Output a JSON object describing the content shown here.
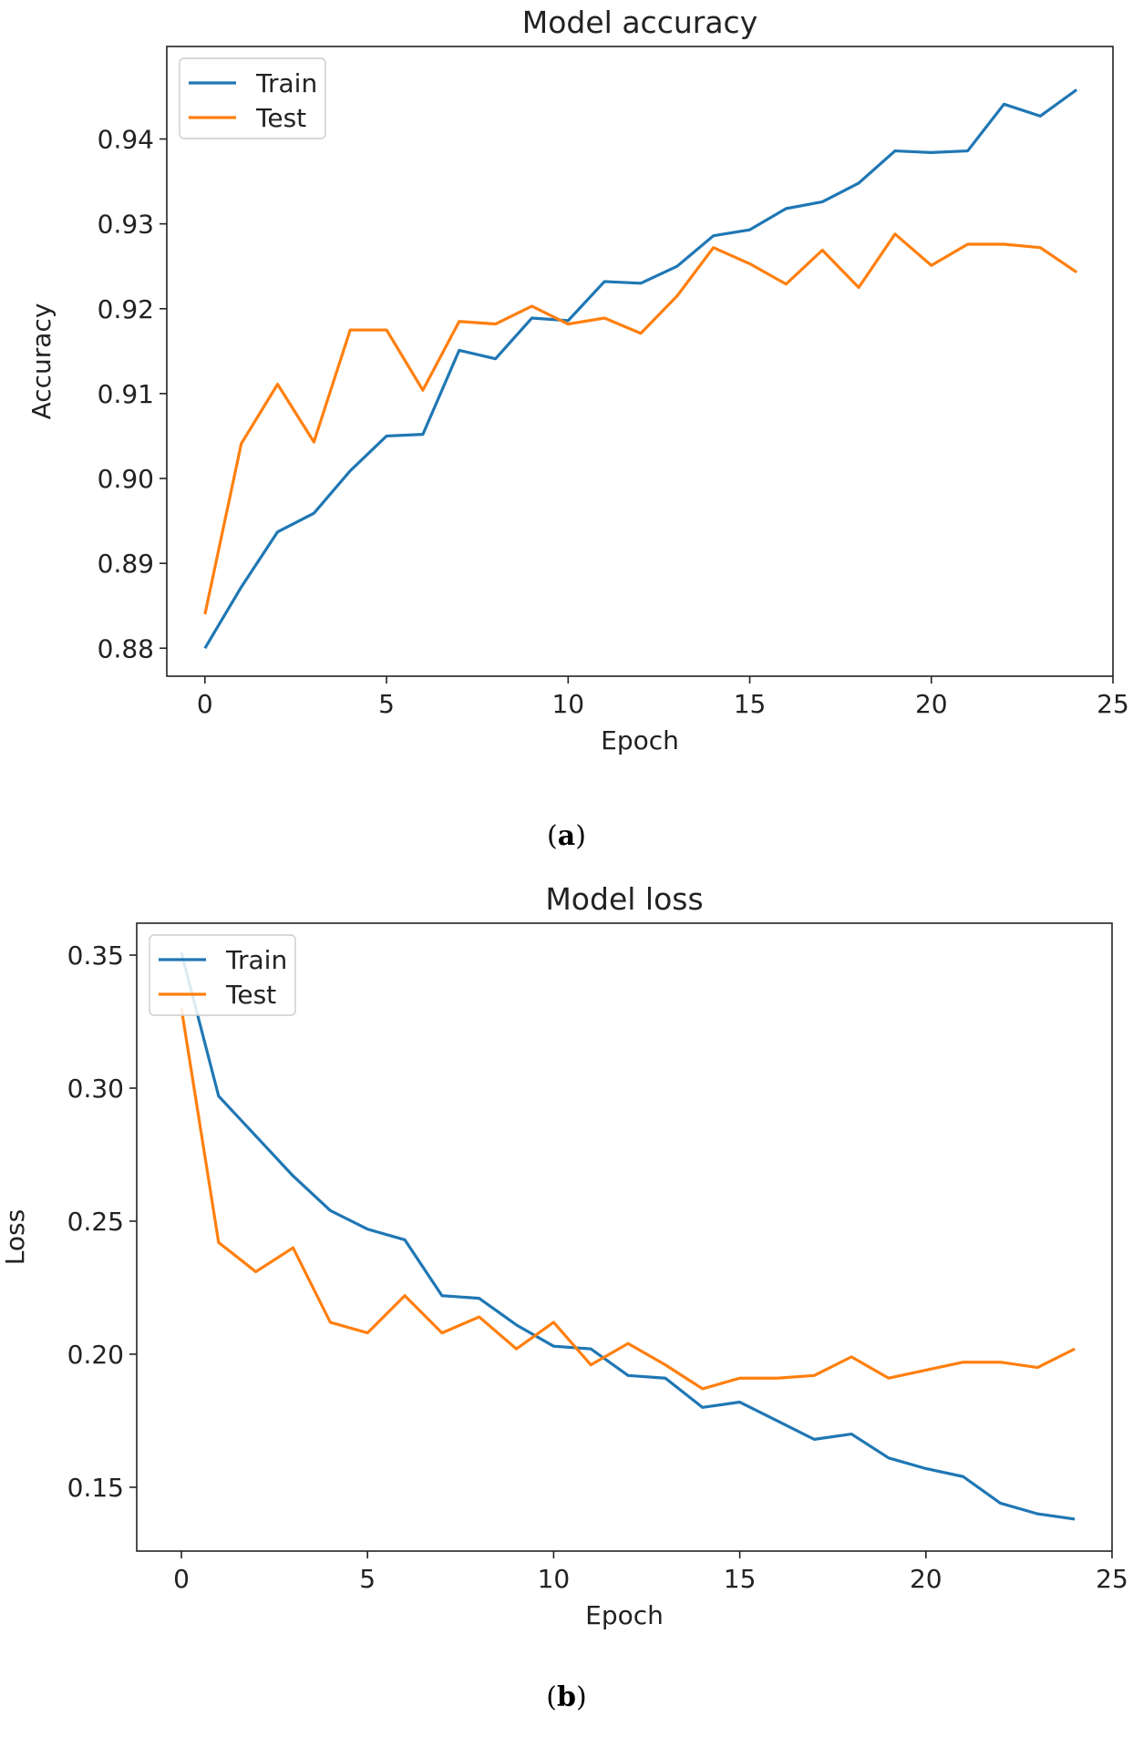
{
  "chart_data": [
    {
      "type": "line",
      "title": "Model accuracy",
      "xlabel": "Epoch",
      "ylabel": "Accuracy",
      "xlim": [
        -1.05,
        25.0
      ],
      "ylim": [
        0.8767,
        0.9509
      ],
      "x": [
        0,
        1,
        2,
        3,
        4,
        5,
        6,
        7,
        8,
        9,
        10,
        11,
        12,
        13,
        14,
        15,
        16,
        17,
        18,
        19,
        20,
        21,
        22,
        23,
        24
      ],
      "xticks": [
        0,
        5,
        10,
        15,
        20,
        25
      ],
      "xtick_labels": [
        "0",
        "5",
        "10",
        "15",
        "20",
        "25"
      ],
      "yticks": [
        0.88,
        0.89,
        0.9,
        0.91,
        0.92,
        0.93,
        0.94
      ],
      "ytick_labels": [
        "0.88",
        "0.89",
        "0.90",
        "0.91",
        "0.92",
        "0.93",
        "0.94"
      ],
      "legend_position": "top-left",
      "series": [
        {
          "name": "Train",
          "color": "#1f77b4",
          "values": [
            0.88,
            0.8872,
            0.8937,
            0.8959,
            0.9009,
            0.905,
            0.9052,
            0.9151,
            0.9141,
            0.9189,
            0.9186,
            0.9232,
            0.923,
            0.925,
            0.9286,
            0.9293,
            0.9318,
            0.9326,
            0.9348,
            0.9386,
            0.9384,
            0.9386,
            0.9441,
            0.9427,
            0.9458
          ]
        },
        {
          "name": "Test",
          "color": "#ff7f0e",
          "values": [
            0.884,
            0.9041,
            0.9111,
            0.9043,
            0.9175,
            0.9175,
            0.9104,
            0.9185,
            0.9182,
            0.9203,
            0.9182,
            0.9189,
            0.9171,
            0.9215,
            0.9272,
            0.9253,
            0.9229,
            0.9269,
            0.9225,
            0.9288,
            0.9251,
            0.9276,
            0.9276,
            0.9272,
            0.9243
          ]
        }
      ]
    },
    {
      "type": "line",
      "title": "Model loss",
      "xlabel": "Epoch",
      "ylabel": "Loss",
      "xlim": [
        -1.2,
        25.0
      ],
      "ylim": [
        0.126,
        0.362
      ],
      "x": [
        0,
        1,
        2,
        3,
        4,
        5,
        6,
        7,
        8,
        9,
        10,
        11,
        12,
        13,
        14,
        15,
        16,
        17,
        18,
        19,
        20,
        21,
        22,
        23,
        24
      ],
      "xticks": [
        0,
        5,
        10,
        15,
        20,
        25
      ],
      "xtick_labels": [
        "0",
        "5",
        "10",
        "15",
        "20",
        "25"
      ],
      "yticks": [
        0.15,
        0.2,
        0.25,
        0.3,
        0.35
      ],
      "ytick_labels": [
        "0.15",
        "0.20",
        "0.25",
        "0.30",
        "0.35"
      ],
      "legend_position": "top-left",
      "series": [
        {
          "name": "Train",
          "color": "#1f77b4",
          "values": [
            0.351,
            0.297,
            0.282,
            0.267,
            0.254,
            0.247,
            0.243,
            0.222,
            0.221,
            0.211,
            0.203,
            0.202,
            0.192,
            0.191,
            0.18,
            0.182,
            0.175,
            0.168,
            0.17,
            0.161,
            0.157,
            0.154,
            0.144,
            0.14,
            0.138
          ]
        },
        {
          "name": "Test",
          "color": "#ff7f0e",
          "values": [
            0.33,
            0.242,
            0.231,
            0.24,
            0.212,
            0.208,
            0.222,
            0.208,
            0.214,
            0.202,
            0.212,
            0.196,
            0.204,
            0.196,
            0.187,
            0.191,
            0.191,
            0.192,
            0.199,
            0.191,
            0.194,
            0.197,
            0.197,
            0.195,
            0.202
          ]
        }
      ]
    }
  ],
  "captions": {
    "a": "a",
    "b": "b"
  }
}
